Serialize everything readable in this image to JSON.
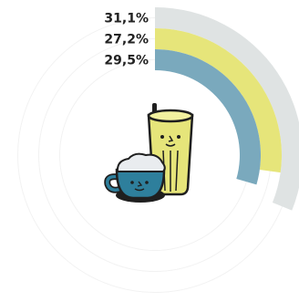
{
  "chart_data": {
    "type": "radial-bar",
    "max_value": 100,
    "series": [
      {
        "label": "31,1%",
        "value": 31.1,
        "color": "#dfe3e3"
      },
      {
        "label": "27,2%",
        "value": 27.2,
        "color": "#e6e57a"
      },
      {
        "label": "29,5%",
        "value": 29.5,
        "color": "#7aa9bd"
      }
    ]
  },
  "illustration": {
    "subject": "iced drink glass and coffee cup with faces",
    "colors": {
      "glass": "#e6e57a",
      "cup": "#2e7f9c",
      "foam": "#e9ecef",
      "outline": "#1f1f1f"
    }
  }
}
